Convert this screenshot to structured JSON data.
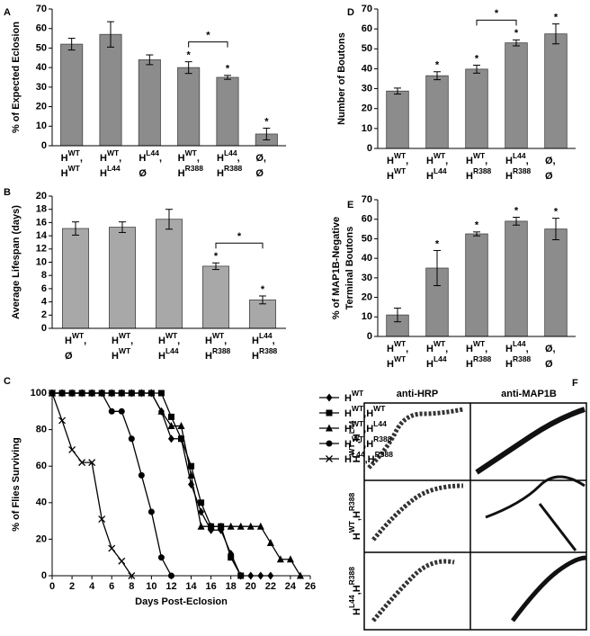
{
  "chart_data": [
    {
      "panel": "A",
      "type": "bar",
      "y_label": [
        "% of Expected Eclosion"
      ],
      "color": "#8c8c8c",
      "categories": [
        [
          [
            {
              "text": "H"
            },
            {
              "sup": "WT"
            },
            {
              "text": ","
            }
          ],
          [
            {
              "text": "H"
            },
            {
              "sup": "WT"
            }
          ]
        ],
        [
          [
            {
              "text": "H"
            },
            {
              "sup": "WT"
            },
            {
              "text": ","
            }
          ],
          [
            {
              "text": "H"
            },
            {
              "sup": "L44"
            }
          ]
        ],
        [
          [
            {
              "text": "H"
            },
            {
              "sup": "L44"
            },
            {
              "text": ","
            }
          ],
          [
            {
              "text": "Ø"
            }
          ]
        ],
        [
          [
            {
              "text": "H"
            },
            {
              "sup": "WT"
            },
            {
              "text": ","
            }
          ],
          [
            {
              "text": "H"
            },
            {
              "sup": "R388"
            }
          ]
        ],
        [
          [
            {
              "text": "H"
            },
            {
              "sup": "L44"
            },
            {
              "text": ","
            }
          ],
          [
            {
              "text": "H"
            },
            {
              "sup": "R388"
            }
          ]
        ],
        [
          [
            {
              "text": "Ø,"
            }
          ],
          [
            {
              "text": "Ø"
            }
          ]
        ]
      ],
      "values": [
        52,
        57,
        44,
        40,
        35,
        6
      ],
      "errors": [
        3,
        6.5,
        2.5,
        3,
        1,
        3
      ],
      "significant": [
        false,
        false,
        false,
        true,
        true,
        true
      ],
      "significance_mark": "*",
      "bracket": [
        3,
        4
      ],
      "ylim": [
        0,
        70
      ],
      "yticks": [
        0,
        10,
        20,
        30,
        40,
        50,
        60,
        70
      ]
    },
    {
      "panel": "B",
      "type": "bar",
      "y_label": [
        "Average Lifespan (days)"
      ],
      "color": "#a8a8a8",
      "categories": [
        [
          [
            {
              "text": "H"
            },
            {
              "sup": "WT"
            },
            {
              "text": ","
            }
          ],
          [
            {
              "text": "Ø"
            }
          ]
        ],
        [
          [
            {
              "text": "H"
            },
            {
              "sup": "WT"
            },
            {
              "text": ","
            }
          ],
          [
            {
              "text": "H"
            },
            {
              "sup": "WT"
            }
          ]
        ],
        [
          [
            {
              "text": "H"
            },
            {
              "sup": "WT"
            },
            {
              "text": ","
            }
          ],
          [
            {
              "text": "H"
            },
            {
              "sup": "L44"
            }
          ]
        ],
        [
          [
            {
              "text": "H"
            },
            {
              "sup": "WT"
            },
            {
              "text": ","
            }
          ],
          [
            {
              "text": "H"
            },
            {
              "sup": "R388"
            }
          ]
        ],
        [
          [
            {
              "text": "H"
            },
            {
              "sup": "L44"
            },
            {
              "text": ","
            }
          ],
          [
            {
              "text": "H"
            },
            {
              "sup": "R388"
            }
          ]
        ]
      ],
      "values": [
        15.1,
        15.3,
        16.5,
        9.4,
        4.3
      ],
      "errors": [
        1,
        0.8,
        1.5,
        0.5,
        0.6
      ],
      "significant": [
        false,
        false,
        false,
        true,
        true
      ],
      "significance_mark": "*",
      "bracket": [
        3,
        4
      ],
      "ylim": [
        0,
        20
      ],
      "yticks": [
        0,
        2,
        4,
        6,
        8,
        10,
        12,
        14,
        16,
        18,
        20
      ]
    },
    {
      "panel": "C",
      "type": "line",
      "y_label": [
        "% of Flies Surviving"
      ],
      "x_label": "Days Post-Eclosion",
      "xlim": [
        0,
        26
      ],
      "xticks": [
        0,
        2,
        4,
        6,
        8,
        10,
        12,
        14,
        16,
        18,
        20,
        22,
        24,
        26
      ],
      "ylim": [
        0,
        100
      ],
      "yticks": [
        0,
        20,
        40,
        60,
        80,
        100
      ],
      "series": [
        {
          "name": [
            {
              "text": "H"
            },
            {
              "sup": "WT"
            }
          ],
          "marker": "diamond",
          "color": "#000000",
          "x": [
            0,
            1,
            2,
            3,
            4,
            5,
            6,
            7,
            8,
            9,
            10,
            11,
            12,
            13,
            14,
            15,
            16,
            17,
            18,
            19,
            20,
            21,
            22
          ],
          "values": [
            100,
            100,
            100,
            100,
            100,
            100,
            100,
            100,
            100,
            100,
            100,
            90,
            75,
            75,
            50,
            35,
            25,
            25,
            12,
            0,
            0,
            0,
            0
          ]
        },
        {
          "name": [
            {
              "text": "H"
            },
            {
              "sup": "WT"
            },
            {
              "text": ",H"
            },
            {
              "sup": "WT"
            }
          ],
          "marker": "square",
          "color": "#000000",
          "x": [
            0,
            1,
            2,
            3,
            4,
            5,
            6,
            7,
            8,
            9,
            10,
            11,
            12,
            13,
            14,
            15,
            16,
            17,
            18,
            19
          ],
          "values": [
            100,
            100,
            100,
            100,
            100,
            100,
            100,
            100,
            100,
            100,
            100,
            100,
            87,
            75,
            60,
            40,
            27,
            27,
            10,
            0
          ]
        },
        {
          "name": [
            {
              "text": "H"
            },
            {
              "sup": "WT"
            },
            {
              "text": ",H"
            },
            {
              "sup": "L44"
            }
          ],
          "marker": "triangle",
          "color": "#000000",
          "x": [
            0,
            1,
            2,
            3,
            4,
            5,
            6,
            7,
            8,
            9,
            10,
            11,
            12,
            13,
            14,
            15,
            16,
            17,
            18,
            19,
            20,
            21,
            22,
            23,
            24,
            25
          ],
          "values": [
            100,
            100,
            100,
            100,
            100,
            100,
            100,
            100,
            100,
            100,
            100,
            90,
            82,
            82,
            55,
            27,
            27,
            27,
            27,
            27,
            27,
            27,
            18,
            9,
            9,
            0
          ]
        },
        {
          "name": [
            {
              "text": "H"
            },
            {
              "sup": "WT"
            },
            {
              "text": ",H"
            },
            {
              "sup": "R388"
            }
          ],
          "marker": "circle",
          "color": "#000000",
          "x": [
            0,
            1,
            2,
            3,
            4,
            5,
            6,
            7,
            8,
            9,
            10,
            11,
            12
          ],
          "values": [
            100,
            100,
            100,
            100,
            100,
            100,
            90,
            90,
            75,
            55,
            35,
            10,
            0
          ]
        },
        {
          "name": [
            {
              "text": "H"
            },
            {
              "sup": "L44"
            },
            {
              "text": ",H"
            },
            {
              "sup": "R388"
            }
          ],
          "marker": "x",
          "color": "#000000",
          "x": [
            0,
            1,
            2,
            3,
            4,
            5,
            6,
            7,
            8
          ],
          "values": [
            100,
            85,
            69,
            62,
            62,
            31,
            15,
            8,
            0
          ]
        }
      ]
    },
    {
      "panel": "D",
      "type": "bar",
      "y_label": [
        "Number of Boutons"
      ],
      "color": "#8c8c8c",
      "categories": [
        [
          [
            {
              "text": "H"
            },
            {
              "sup": "WT"
            },
            {
              "text": ","
            }
          ],
          [
            {
              "text": "H"
            },
            {
              "sup": "WT"
            }
          ]
        ],
        [
          [
            {
              "text": "H"
            },
            {
              "sup": "WT"
            },
            {
              "text": ","
            }
          ],
          [
            {
              "text": "H"
            },
            {
              "sup": "L44"
            }
          ]
        ],
        [
          [
            {
              "text": "H"
            },
            {
              "sup": "WT"
            },
            {
              "text": ","
            }
          ],
          [
            {
              "text": "H"
            },
            {
              "sup": "R388"
            }
          ]
        ],
        [
          [
            {
              "text": "H"
            },
            {
              "sup": "L44"
            },
            {
              "text": ","
            }
          ],
          [
            {
              "text": "H"
            },
            {
              "sup": "R388"
            }
          ]
        ],
        [
          [
            {
              "text": "Ø,"
            }
          ],
          [
            {
              "text": "Ø"
            }
          ]
        ]
      ],
      "values": [
        28.8,
        36.5,
        39.8,
        53,
        57.5
      ],
      "errors": [
        1.5,
        2,
        2,
        1.5,
        5
      ],
      "significant": [
        false,
        true,
        true,
        true,
        true
      ],
      "significance_mark": "*",
      "bracket": [
        2,
        3
      ],
      "ylim": [
        0,
        70
      ],
      "yticks": [
        0,
        10,
        20,
        30,
        40,
        50,
        60,
        70
      ]
    },
    {
      "panel": "E",
      "type": "bar",
      "y_label": [
        "% of MAP1B-Negative",
        "Terminal Boutons"
      ],
      "color": "#8c8c8c",
      "categories": [
        [
          [
            {
              "text": "H"
            },
            {
              "sup": "WT"
            },
            {
              "text": ","
            }
          ],
          [
            {
              "text": "H"
            },
            {
              "sup": "WT"
            }
          ]
        ],
        [
          [
            {
              "text": "H"
            },
            {
              "sup": "WT"
            },
            {
              "text": ","
            }
          ],
          [
            {
              "text": "H"
            },
            {
              "sup": "L44"
            }
          ]
        ],
        [
          [
            {
              "text": "H"
            },
            {
              "sup": "WT"
            },
            {
              "text": ","
            }
          ],
          [
            {
              "text": "H"
            },
            {
              "sup": "R388"
            }
          ]
        ],
        [
          [
            {
              "text": "H"
            },
            {
              "sup": "L44"
            },
            {
              "text": ","
            }
          ],
          [
            {
              "text": "H"
            },
            {
              "sup": "R388"
            }
          ]
        ],
        [
          [
            {
              "text": "Ø,"
            }
          ],
          [
            {
              "text": "Ø"
            }
          ]
        ]
      ],
      "values": [
        11,
        35,
        52.5,
        59,
        55
      ],
      "errors": [
        3.5,
        9,
        1,
        2,
        5.5
      ],
      "significant": [
        false,
        true,
        true,
        true,
        true
      ],
      "significance_mark": "*",
      "ylim": [
        0,
        70
      ],
      "yticks": [
        0,
        10,
        20,
        30,
        40,
        50,
        60,
        70
      ]
    }
  ],
  "figure_f": {
    "panel": "F",
    "columns": [
      "anti-HRP",
      "anti-MAP1B"
    ],
    "rows": [
      [
        {
          "text": "H"
        },
        {
          "sup": "WT"
        },
        {
          "text": ",H"
        },
        {
          "sup": "L44"
        }
      ],
      [
        {
          "text": "H"
        },
        {
          "sup": "WT"
        },
        {
          "text": ",H"
        },
        {
          "sup": "R388"
        }
      ],
      [
        {
          "text": "H"
        },
        {
          "sup": "L44"
        },
        {
          "text": ",H"
        },
        {
          "sup": "R388"
        }
      ]
    ]
  }
}
